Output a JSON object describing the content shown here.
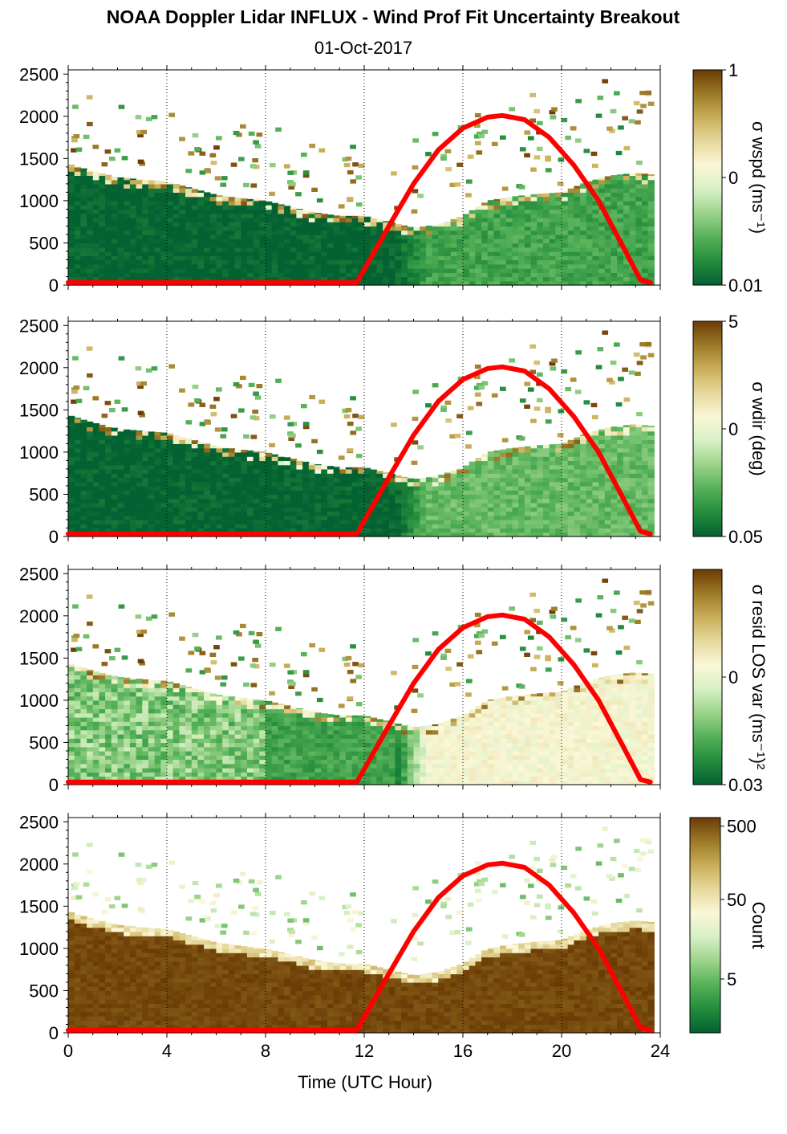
{
  "title": "NOAA Doppler Lidar INFLUX - Wind Prof Fit Uncertainty Breakout",
  "subtitle": "01-Oct-2017",
  "colors": {
    "colormap": [
      "#046132",
      "#238c3c",
      "#56b158",
      "#9ad38a",
      "#d7f0c5",
      "#fbf7d8",
      "#e6d99c",
      "#c9ae5a",
      "#9c7a27",
      "#6b3b05"
    ],
    "sun_curve": "#ff0000",
    "background": "#ffffff"
  },
  "chart_data": {
    "type": "heatmap",
    "x_label": "Time (UTC Hour)",
    "x_range": [
      0,
      24
    ],
    "x_ticks": [
      "0",
      "4",
      "8",
      "12",
      "16",
      "20",
      "24"
    ],
    "y_range": [
      0,
      2550
    ],
    "y_ticks": [
      "0",
      "500",
      "1000",
      "1500",
      "2000",
      "2500"
    ],
    "grid": "vertical dotted lines every 4 hours",
    "data_top_height_m": [
      [
        0,
        1440
      ],
      [
        1,
        1350
      ],
      [
        2,
        1280
      ],
      [
        3,
        1250
      ],
      [
        4,
        1230
      ],
      [
        5,
        1150
      ],
      [
        6,
        1070
      ],
      [
        7,
        1030
      ],
      [
        8,
        1000
      ],
      [
        9,
        930
      ],
      [
        10,
        860
      ],
      [
        11,
        820
      ],
      [
        12,
        820
      ],
      [
        13,
        750
      ],
      [
        14,
        680
      ],
      [
        15,
        720
      ],
      [
        16,
        820
      ],
      [
        17,
        1000
      ],
      [
        18,
        1050
      ],
      [
        19,
        1080
      ],
      [
        20,
        1100
      ],
      [
        21,
        1220
      ],
      [
        22,
        1300
      ],
      [
        23,
        1330
      ],
      [
        23.7,
        1310
      ]
    ],
    "sun_curve": {
      "description": "solar elevation curve",
      "points": [
        [
          0,
          30
        ],
        [
          11.7,
          30
        ],
        [
          13,
          700
        ],
        [
          14,
          1200
        ],
        [
          15,
          1600
        ],
        [
          16,
          1860
        ],
        [
          17,
          1990
        ],
        [
          17.6,
          2010
        ],
        [
          18.5,
          1960
        ],
        [
          19.5,
          1750
        ],
        [
          20.5,
          1420
        ],
        [
          21.5,
          1000
        ],
        [
          22.5,
          450
        ],
        [
          23.2,
          60
        ],
        [
          23.6,
          30
        ]
      ]
    },
    "panels": [
      {
        "name": "wspd",
        "colorbar_label": "σ wspd (ms⁻¹)",
        "colorbar_ticks": [
          "1",
          "0",
          "0.01"
        ],
        "colorbar_tick_positions": [
          1.0,
          0.5,
          0.0
        ],
        "below_top_level": 0.0,
        "afternoon_below_level": 0.18
      },
      {
        "name": "wdir",
        "colorbar_label": "σ wdir (deg)",
        "colorbar_ticks": [
          "5",
          "0",
          "0.05"
        ],
        "colorbar_tick_positions": [
          1.0,
          0.5,
          0.0
        ],
        "below_top_level": 0.0,
        "afternoon_below_level": 0.25
      },
      {
        "name": "resid",
        "colorbar_label": "σ resid LOS var (ms⁻¹)²",
        "colorbar_ticks": [
          "0",
          "0.03"
        ],
        "colorbar_tick_positions": [
          0.5,
          0.0
        ],
        "below_top_level": 0.18,
        "afternoon_below_level": 0.55
      },
      {
        "name": "count",
        "colorbar_label": "Count",
        "colorbar_ticks": [
          "500",
          "50",
          "5"
        ],
        "colorbar_tick_positions": [
          0.96,
          0.62,
          0.25
        ],
        "below_top_level": 0.98,
        "afternoon_below_level": 0.96
      }
    ]
  }
}
